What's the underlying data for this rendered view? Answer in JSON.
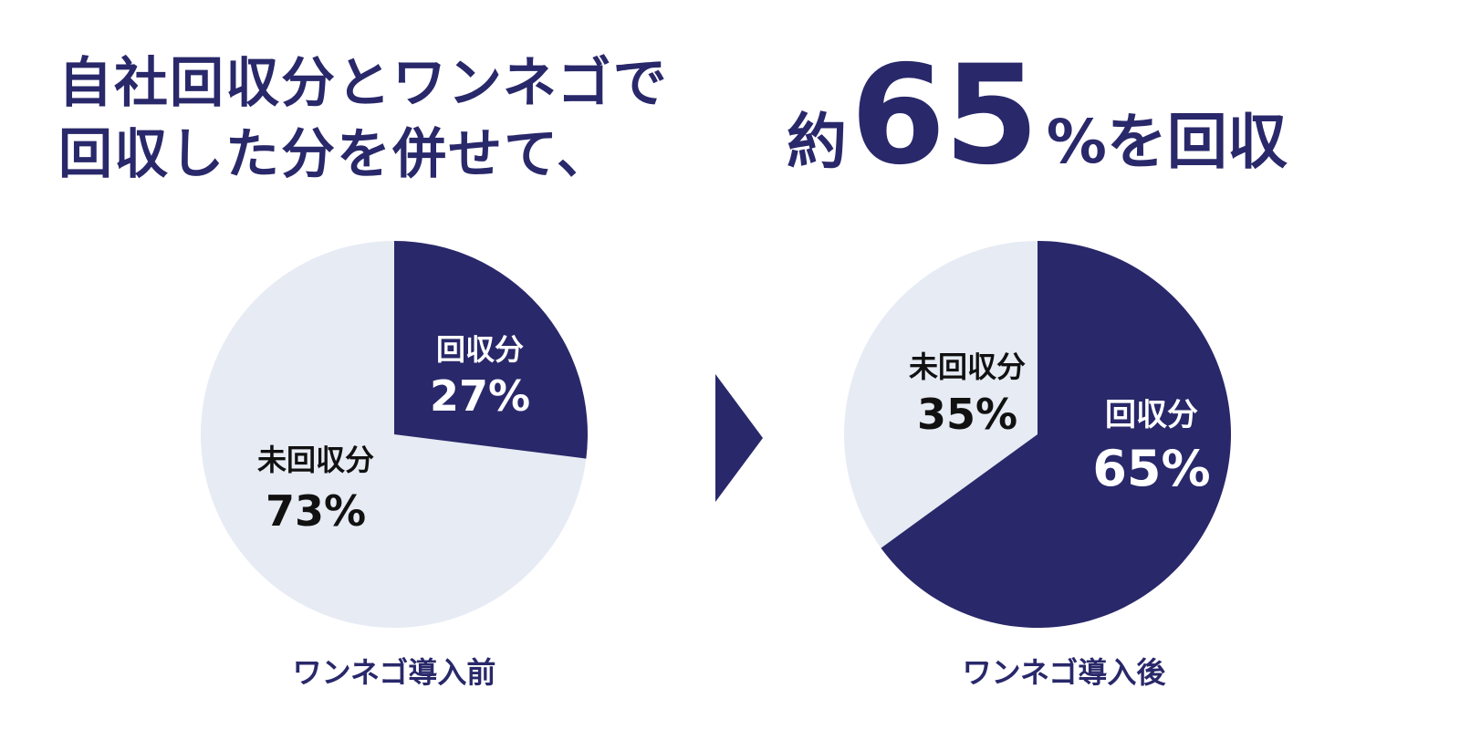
{
  "headline": {
    "line1": "自社回収分とワンネゴで",
    "line2": "回収した分を併せて、",
    "prefix": "約",
    "number": "65",
    "suffix": "%を回収"
  },
  "colors": {
    "navy": "#29286a",
    "light": "#e7ebf4",
    "white": "#ffffff",
    "black": "#111111"
  },
  "chart_data": [
    {
      "type": "pie",
      "caption": "ワンネゴ導入前",
      "slices": [
        {
          "label": "回収分",
          "value": 27,
          "value_label": "27%",
          "color": "#29286a",
          "text_color": "#ffffff"
        },
        {
          "label": "未回収分",
          "value": 73,
          "value_label": "73%",
          "color": "#e7ebf4",
          "text_color": "#111111"
        }
      ]
    },
    {
      "type": "pie",
      "caption": "ワンネゴ導入後",
      "slices": [
        {
          "label": "回収分",
          "value": 65,
          "value_label": "65%",
          "color": "#29286a",
          "text_color": "#ffffff"
        },
        {
          "label": "未回収分",
          "value": 35,
          "value_label": "35%",
          "color": "#e7ebf4",
          "text_color": "#111111"
        }
      ]
    }
  ],
  "arrow": {
    "icon": "chevron-right-icon"
  }
}
